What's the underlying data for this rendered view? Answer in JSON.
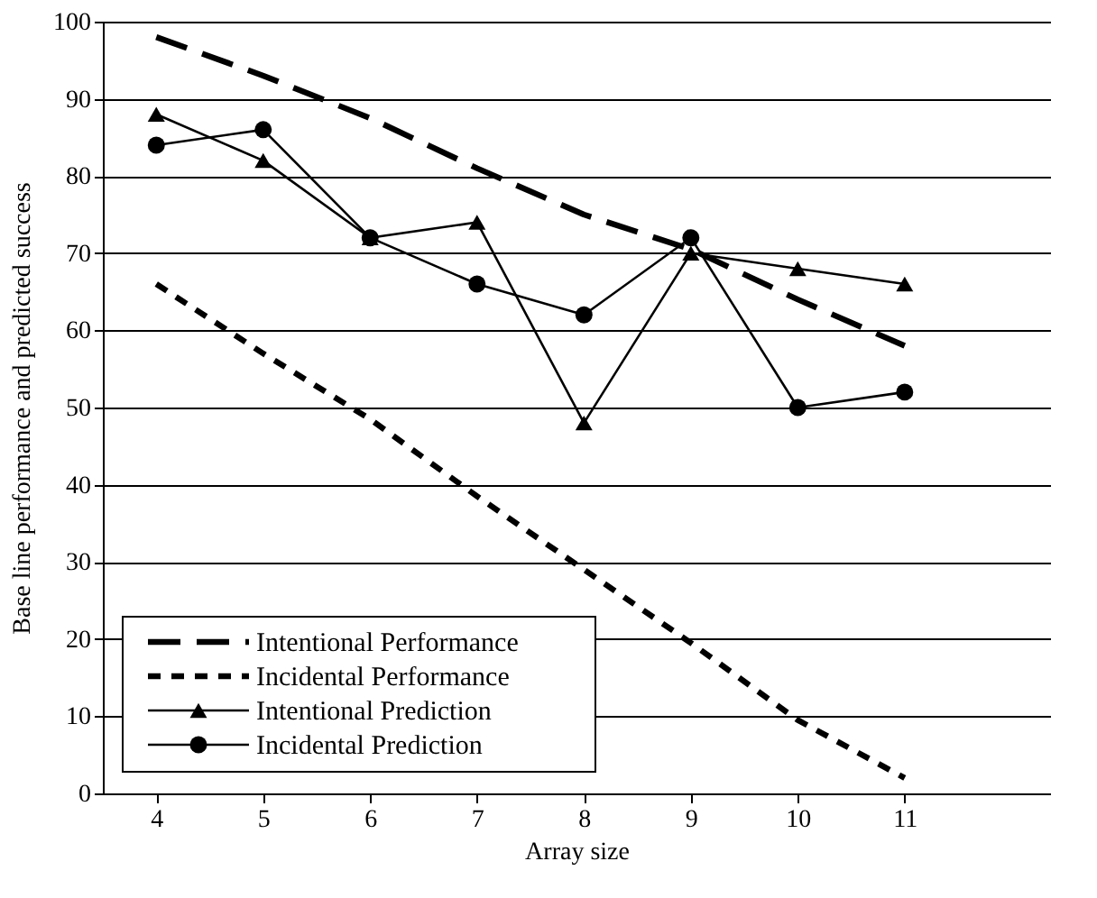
{
  "chart_data": {
    "type": "line",
    "xlabel": "Array size",
    "ylabel": "Base line performance and predicted success",
    "x": [
      4,
      5,
      6,
      7,
      8,
      9,
      10,
      11
    ],
    "xlim": [
      3.5,
      12.36
    ],
    "xticks": [
      4,
      5,
      6,
      7,
      8,
      9,
      10,
      11
    ],
    "ylim": [
      0,
      100
    ],
    "yticks": [
      0,
      10,
      20,
      30,
      40,
      50,
      60,
      70,
      80,
      90,
      100
    ],
    "grid": "y",
    "legend": "bottom left",
    "series": [
      {
        "name": "Intentional Performance",
        "color": "#000000",
        "line_style": "dashed",
        "marker": "none",
        "values": [
          98,
          93,
          87.5,
          81,
          75,
          70.5,
          64,
          58
        ]
      },
      {
        "name": "Incidental Performance",
        "color": "#000000",
        "line_style": "dotted",
        "marker": "none",
        "values": [
          66,
          57,
          48.5,
          38.5,
          29,
          19.5,
          9.5,
          2
        ]
      },
      {
        "name": "Intentional Prediction",
        "color": "#000000",
        "line_style": "solid",
        "marker": "triangle",
        "values": [
          88,
          82,
          72,
          74,
          48,
          70,
          68,
          66
        ]
      },
      {
        "name": "Incidental Prediction",
        "color": "#000000",
        "line_style": "solid",
        "marker": "circle",
        "values": [
          84,
          86,
          72,
          66,
          62,
          72,
          50,
          52
        ]
      }
    ]
  }
}
